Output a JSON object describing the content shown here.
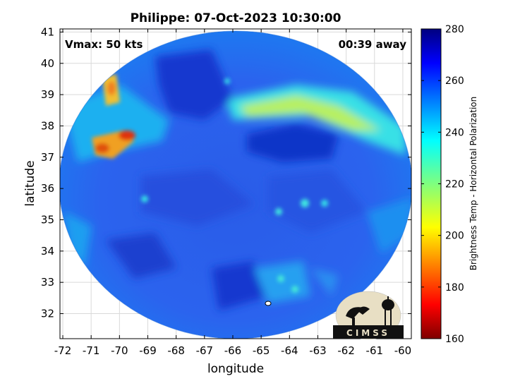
{
  "title": "Philippe: 07-Oct-2023 10:30:00",
  "annotations": {
    "vmax": "Vmax: 50 kts",
    "away": "00:39 away"
  },
  "axes": {
    "xlabel": "longitude",
    "ylabel": "latitude",
    "xlim": [
      -72.1,
      -59.7
    ],
    "ylim": [
      31.2,
      41.1
    ],
    "xticks": [
      -72,
      -71,
      -70,
      -69,
      -68,
      -67,
      -66,
      -65,
      -64,
      -63,
      -62,
      -61,
      -60
    ],
    "yticks": [
      32,
      33,
      34,
      35,
      36,
      37,
      38,
      39,
      40,
      41
    ],
    "grid": true
  },
  "colorbar": {
    "label": "Brightness Temp - Horizontal Polarization",
    "range": [
      160,
      280
    ],
    "ticks": [
      160,
      180,
      200,
      220,
      240,
      260,
      280
    ],
    "colormap": "jet"
  },
  "logo": {
    "text": "CIMSS"
  },
  "colors": {
    "grid": "#d9d9d9",
    "frame": "#000000",
    "logo_bg": "#e8dfc4",
    "logo_fg": "#111111"
  }
}
